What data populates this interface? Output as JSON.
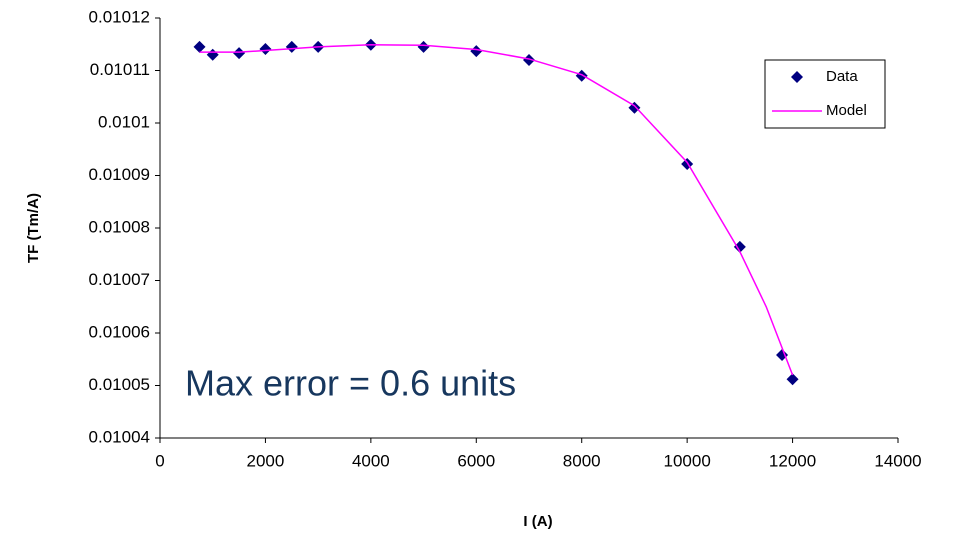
{
  "chart_data": {
    "type": "scatter",
    "xlabel": "I (A)",
    "ylabel": "TF (Tm/A)",
    "annotation": "Max error = 0.6 units",
    "xlim": [
      0,
      14000
    ],
    "xticks": [
      0,
      2000,
      4000,
      6000,
      8000,
      10000,
      12000,
      14000
    ],
    "ylim": [
      0.01004,
      0.01012
    ],
    "yticks": [
      0.01004,
      0.01005,
      0.01006,
      0.01007,
      0.01008,
      0.01009,
      0.0101,
      0.01011,
      0.01012
    ],
    "legend": "upper right",
    "series": [
      {
        "name": "Data",
        "color": "#000080",
        "style": "markers",
        "x": [
          750,
          1000,
          1500,
          2000,
          2500,
          3000,
          4000,
          5000,
          6000,
          7000,
          8000,
          9000,
          10000,
          11000,
          11800,
          12000
        ],
        "values": [
          0.0101145,
          0.010113,
          0.0101133,
          0.0101141,
          0.0101145,
          0.0101145,
          0.0101149,
          0.0101145,
          0.0101137,
          0.010112,
          0.010109,
          0.0101029,
          0.0100922,
          0.0100764,
          0.0100558,
          0.0100512
        ]
      },
      {
        "name": "Model",
        "color": "#ff00ff",
        "style": "line",
        "x": [
          750,
          1000,
          1500,
          2000,
          3000,
          4000,
          5000,
          6000,
          7000,
          8000,
          9000,
          10000,
          11000,
          11500,
          12000
        ],
        "values": [
          0.0101135,
          0.0101135,
          0.0101135,
          0.0101138,
          0.0101145,
          0.0101149,
          0.0101148,
          0.010114,
          0.0101122,
          0.0101092,
          0.0101033,
          0.0100925,
          0.0100755,
          0.010065,
          0.010052
        ]
      }
    ]
  }
}
